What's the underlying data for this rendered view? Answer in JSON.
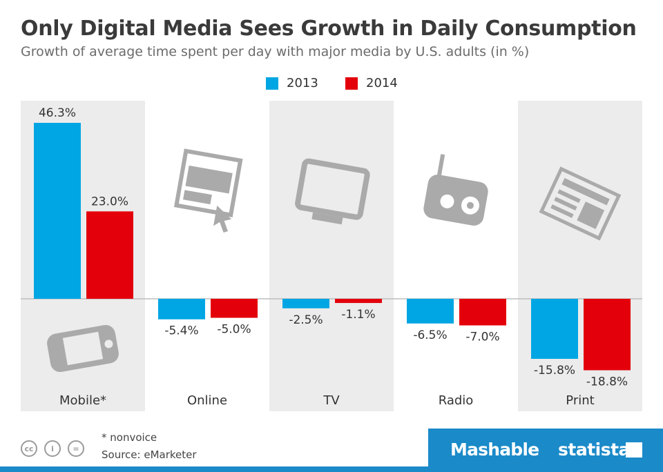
{
  "title": "Only Digital Media Sees Growth in Daily Consumption",
  "subtitle": "Growth of average time spent per day with major media by U.S. adults (in %)",
  "colors": {
    "series_2013": "#00a6e3",
    "series_2014": "#e3000b",
    "panel_shade": "#ececec",
    "icon_grey": "#aaaaaa",
    "brand_blue": "#1a8ac9"
  },
  "chart_data": {
    "type": "bar",
    "categories": [
      "Mobile*",
      "Online",
      "TV",
      "Radio",
      "Print"
    ],
    "category_icons": [
      "smartphone-icon",
      "web-cursor-icon",
      "tv-icon",
      "radio-icon",
      "newspaper-icon"
    ],
    "series": [
      {
        "name": "2013",
        "values": [
          46.3,
          -5.4,
          -2.5,
          -6.5,
          -15.8
        ],
        "labels": [
          "46.3%",
          "-5.4%",
          "-2.5%",
          "-6.5%",
          "-15.8%"
        ]
      },
      {
        "name": "2014",
        "values": [
          23.0,
          -5.0,
          -1.1,
          -7.0,
          -18.8
        ],
        "labels": [
          "23.0%",
          "-5.0%",
          "-1.1%",
          "-7.0%",
          "-18.8%"
        ]
      }
    ],
    "legend_position": "top-center",
    "grid": false
  },
  "footer": {
    "note": "* nonvoice",
    "source": "Source: eMarketer"
  },
  "license_icons": [
    "cc-icon",
    "attribution-icon",
    "no-derivatives-icon"
  ],
  "license_glyphs": [
    "cc",
    "i",
    "="
  ],
  "brands": {
    "mashable": "Mashable",
    "statista": "statista"
  }
}
